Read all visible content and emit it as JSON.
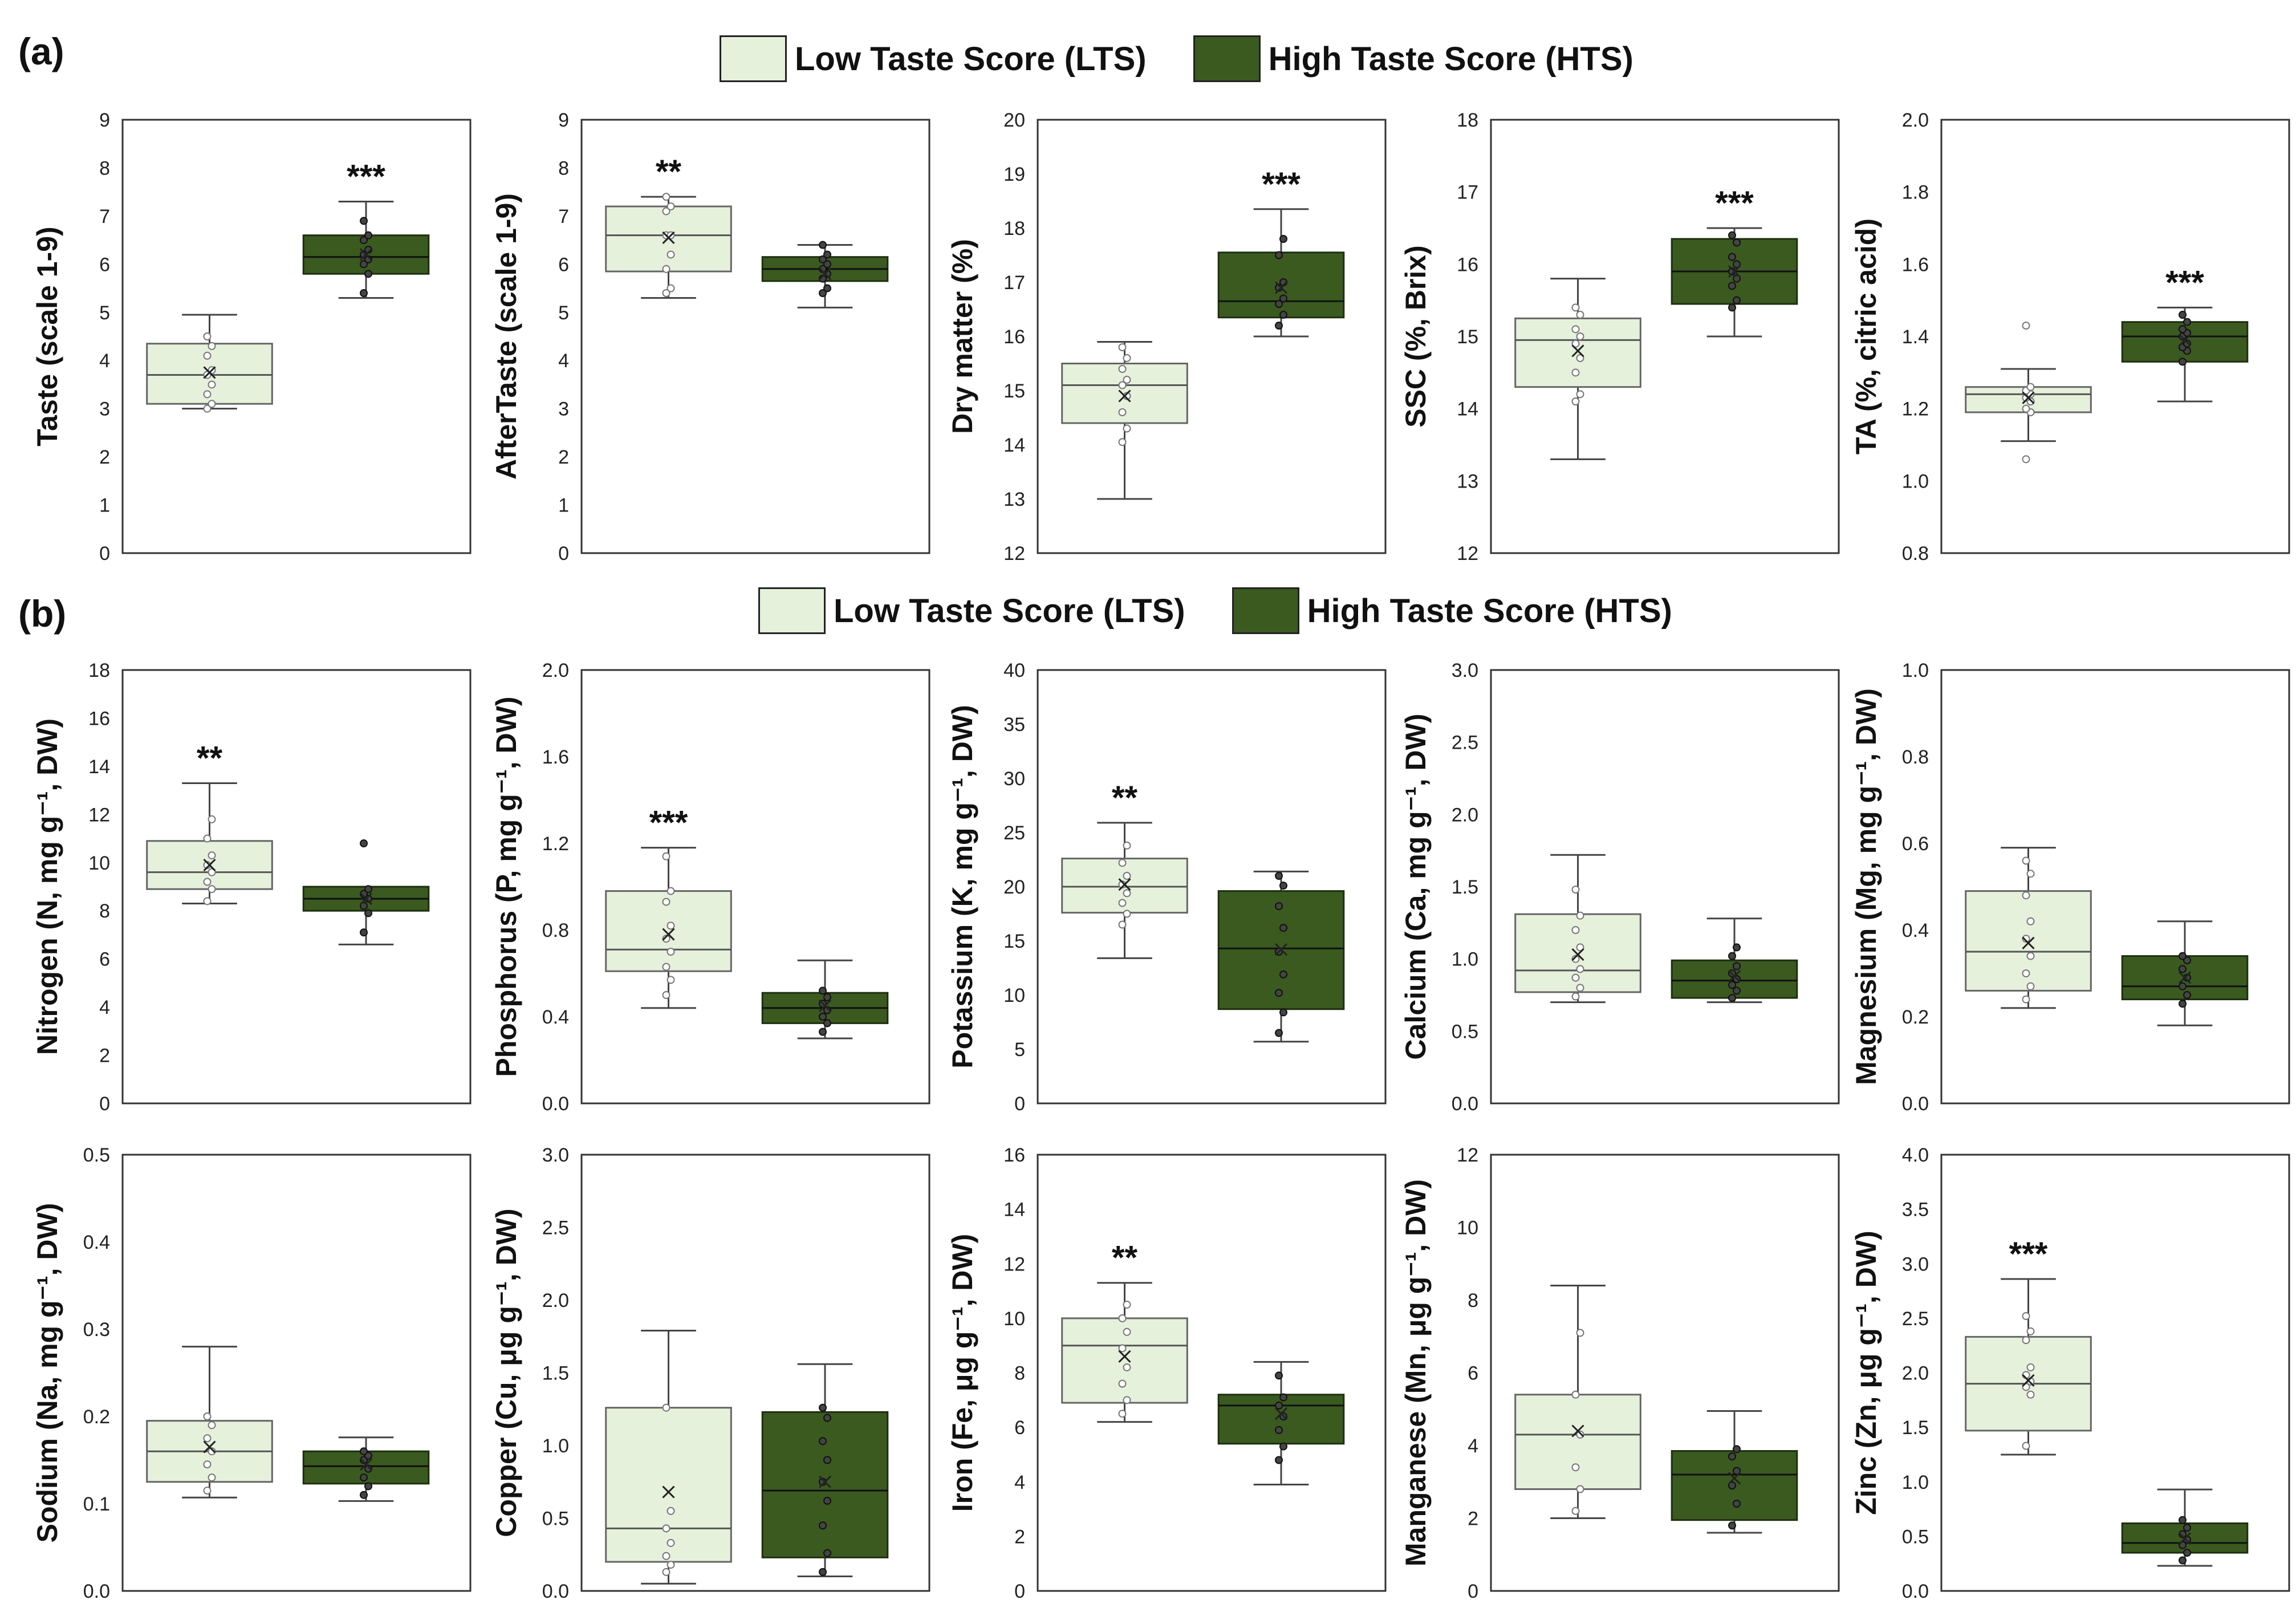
{
  "panels": {
    "a": "(a)",
    "b": "(b)"
  },
  "legend": {
    "lts_label": "Low Taste Score (LTS)",
    "hts_label": "High Taste Score (HTS)",
    "lts_color": "#e6f1dc",
    "hts_color": "#3a5a20"
  },
  "chart_data": [
    {
      "type": "box",
      "ylabel": "Taste (scale 1-9)",
      "ylim": [
        0,
        9
      ],
      "yticks": [
        "0",
        "1",
        "2",
        "3",
        "4",
        "5",
        "6",
        "7",
        "8",
        "9"
      ],
      "significance": "***",
      "sig_over": "HTS",
      "series": [
        {
          "name": "LTS",
          "min": 3.0,
          "q1": 3.1,
          "median": 3.7,
          "q3": 4.35,
          "max": 4.95,
          "mean": 3.75,
          "points": [
            3.0,
            3.1,
            3.3,
            3.5,
            3.7,
            3.8,
            4.1,
            4.3,
            4.5
          ]
        },
        {
          "name": "HTS",
          "min": 5.3,
          "q1": 5.8,
          "median": 6.15,
          "q3": 6.6,
          "max": 7.3,
          "mean": 6.2,
          "points": [
            5.4,
            5.8,
            6.0,
            6.1,
            6.2,
            6.3,
            6.5,
            6.6,
            6.9
          ]
        }
      ]
    },
    {
      "type": "box",
      "ylabel": "AfterTaste (scale 1-9)",
      "ylim": [
        0,
        9
      ],
      "yticks": [
        "0",
        "1",
        "2",
        "3",
        "4",
        "5",
        "6",
        "7",
        "8",
        "9"
      ],
      "significance": "**",
      "sig_over": "LTS",
      "series": [
        {
          "name": "LTS",
          "min": 5.3,
          "q1": 5.85,
          "median": 6.6,
          "q3": 7.2,
          "max": 7.4,
          "mean": 6.55,
          "points": [
            5.4,
            5.5,
            5.9,
            6.2,
            6.6,
            6.6,
            7.1,
            7.2,
            7.4
          ]
        },
        {
          "name": "HTS",
          "min": 5.1,
          "q1": 5.65,
          "median": 5.9,
          "q3": 6.15,
          "max": 6.4,
          "mean": 5.8,
          "points": [
            5.4,
            5.5,
            5.7,
            5.8,
            5.9,
            6.0,
            6.1,
            6.2,
            6.4
          ]
        }
      ]
    },
    {
      "type": "box",
      "ylabel": "Dry matter (%)",
      "ylim": [
        12,
        20
      ],
      "yticks": [
        "12",
        "13",
        "14",
        "15",
        "16",
        "17",
        "18",
        "19",
        "20"
      ],
      "significance": "***",
      "sig_over": "HTS",
      "series": [
        {
          "name": "LTS",
          "min": 13.0,
          "q1": 14.4,
          "median": 15.1,
          "q3": 15.5,
          "max": 15.9,
          "mean": 14.9,
          "points": [
            14.05,
            14.3,
            14.6,
            14.9,
            15.1,
            15.2,
            15.4,
            15.6,
            15.8
          ]
        },
        {
          "name": "HTS",
          "min": 16.0,
          "q1": 16.35,
          "median": 16.65,
          "q3": 17.55,
          "max": 18.35,
          "mean": 16.9,
          "points": [
            16.2,
            16.4,
            16.6,
            16.7,
            16.9,
            17.0,
            17.5,
            17.8
          ]
        }
      ]
    },
    {
      "type": "box",
      "ylabel": "SSC (%, Brix)",
      "ylim": [
        12,
        18
      ],
      "yticks": [
        "12",
        "13",
        "14",
        "15",
        "16",
        "17",
        "18"
      ],
      "significance": "***",
      "sig_over": "HTS",
      "series": [
        {
          "name": "LTS",
          "min": 13.3,
          "q1": 14.3,
          "median": 14.95,
          "q3": 15.25,
          "max": 15.8,
          "mean": 14.8,
          "points": [
            14.1,
            14.2,
            14.5,
            14.7,
            14.9,
            15.0,
            15.1,
            15.3,
            15.4
          ]
        },
        {
          "name": "HTS",
          "min": 15.0,
          "q1": 15.45,
          "median": 15.9,
          "q3": 16.35,
          "max": 16.5,
          "mean": 15.9,
          "points": [
            15.4,
            15.5,
            15.7,
            15.8,
            15.9,
            16.0,
            16.1,
            16.3,
            16.4
          ]
        }
      ]
    },
    {
      "type": "box",
      "ylabel": "TA (%, citric acid)",
      "ylim": [
        0.8,
        2.0
      ],
      "yticks": [
        "0.8",
        "1.0",
        "1.2",
        "1.4",
        "1.6",
        "1.8",
        "2.0"
      ],
      "significance": "***",
      "sig_over": "HTS",
      "series": [
        {
          "name": "LTS",
          "min": 1.11,
          "q1": 1.19,
          "median": 1.24,
          "q3": 1.26,
          "max": 1.31,
          "mean": 1.23,
          "points": [
            1.06,
            1.19,
            1.2,
            1.22,
            1.23,
            1.24,
            1.25,
            1.26,
            1.43
          ]
        },
        {
          "name": "HTS",
          "min": 1.22,
          "q1": 1.33,
          "median": 1.4,
          "q3": 1.44,
          "max": 1.48,
          "mean": 1.39,
          "points": [
            1.33,
            1.36,
            1.37,
            1.38,
            1.4,
            1.41,
            1.42,
            1.44,
            1.46
          ]
        }
      ]
    },
    {
      "type": "box",
      "ylabel": "Nitrogen (N, mg g⁻¹, DW)",
      "ylim": [
        0,
        18
      ],
      "yticks": [
        "0",
        "2",
        "4",
        "6",
        "8",
        "10",
        "12",
        "14",
        "16",
        "18"
      ],
      "significance": "**",
      "sig_over": "LTS",
      "series": [
        {
          "name": "LTS",
          "min": 8.3,
          "q1": 8.9,
          "median": 9.6,
          "q3": 10.9,
          "max": 13.3,
          "mean": 9.9,
          "points": [
            8.4,
            8.9,
            9.2,
            9.6,
            9.9,
            10.3,
            11.0,
            11.8
          ]
        },
        {
          "name": "HTS",
          "min": 6.6,
          "q1": 8.0,
          "median": 8.5,
          "q3": 9.0,
          "max": 9.0,
          "mean": 8.5,
          "points": [
            7.1,
            7.9,
            8.2,
            8.5,
            8.7,
            8.9,
            10.8
          ]
        }
      ]
    },
    {
      "type": "box",
      "ylabel": "Phosphorus (P, mg g⁻¹, DW)",
      "ylim": [
        0,
        2.0
      ],
      "yticks": [
        "0.0",
        "0.4",
        "0.8",
        "1.2",
        "1.6",
        "2.0"
      ],
      "significance": "***",
      "sig_over": "LTS",
      "series": [
        {
          "name": "LTS",
          "min": 0.44,
          "q1": 0.61,
          "median": 0.71,
          "q3": 0.98,
          "max": 1.18,
          "mean": 0.78,
          "points": [
            0.5,
            0.57,
            0.63,
            0.7,
            0.76,
            0.82,
            0.93,
            0.98,
            1.14
          ]
        },
        {
          "name": "HTS",
          "min": 0.3,
          "q1": 0.37,
          "median": 0.44,
          "q3": 0.51,
          "max": 0.66,
          "mean": 0.45,
          "points": [
            0.33,
            0.37,
            0.4,
            0.43,
            0.46,
            0.49,
            0.52
          ]
        }
      ]
    },
    {
      "type": "box",
      "ylabel": "Potassium (K, mg g⁻¹, DW)",
      "ylim": [
        0,
        40
      ],
      "yticks": [
        "0",
        "5",
        "10",
        "15",
        "20",
        "25",
        "30",
        "35",
        "40"
      ],
      "significance": "**",
      "sig_over": "LTS",
      "series": [
        {
          "name": "LTS",
          "min": 13.4,
          "q1": 17.6,
          "median": 20.0,
          "q3": 22.6,
          "max": 25.9,
          "mean": 20.2,
          "points": [
            16.5,
            17.5,
            18.5,
            19.4,
            20.2,
            21.0,
            22.2,
            23.8
          ]
        },
        {
          "name": "HTS",
          "min": 5.7,
          "q1": 8.7,
          "median": 14.3,
          "q3": 19.6,
          "max": 21.4,
          "mean": 14.2,
          "points": [
            6.5,
            8.4,
            10.2,
            11.9,
            14.0,
            16.2,
            18.2,
            20.1,
            21.0
          ]
        }
      ]
    },
    {
      "type": "box",
      "ylabel": "Calcium (Ca, mg g⁻¹, DW)",
      "ylim": [
        0,
        3.0
      ],
      "yticks": [
        "0.0",
        "0.5",
        "1.0",
        "1.5",
        "2.0",
        "2.5",
        "3.0"
      ],
      "significance": "",
      "sig_over": "",
      "series": [
        {
          "name": "LTS",
          "min": 0.7,
          "q1": 0.77,
          "median": 0.92,
          "q3": 1.31,
          "max": 1.72,
          "mean": 1.03,
          "points": [
            0.74,
            0.8,
            0.87,
            0.93,
            1.0,
            1.08,
            1.2,
            1.3,
            1.48
          ]
        },
        {
          "name": "HTS",
          "min": 0.7,
          "q1": 0.73,
          "median": 0.85,
          "q3": 0.99,
          "max": 1.28,
          "mean": 0.88,
          "points": [
            0.73,
            0.78,
            0.82,
            0.86,
            0.9,
            0.95,
            1.02,
            1.08
          ]
        }
      ]
    },
    {
      "type": "box",
      "ylabel": "Magnesium (Mg, mg g⁻¹, DW)",
      "ylim": [
        0,
        1.0
      ],
      "yticks": [
        "0.0",
        "0.2",
        "0.4",
        "0.6",
        "0.8",
        "1.0"
      ],
      "significance": "",
      "sig_over": "",
      "series": [
        {
          "name": "LTS",
          "min": 0.22,
          "q1": 0.26,
          "median": 0.35,
          "q3": 0.49,
          "max": 0.59,
          "mean": 0.37,
          "points": [
            0.24,
            0.27,
            0.3,
            0.34,
            0.38,
            0.42,
            0.48,
            0.53,
            0.56
          ]
        },
        {
          "name": "HTS",
          "min": 0.18,
          "q1": 0.24,
          "median": 0.27,
          "q3": 0.34,
          "max": 0.42,
          "mean": 0.29,
          "points": [
            0.23,
            0.25,
            0.27,
            0.29,
            0.31,
            0.33,
            0.34
          ]
        }
      ]
    },
    {
      "type": "box",
      "ylabel": "Sodium (Na, mg g⁻¹, DW)",
      "ylim": [
        0,
        0.5
      ],
      "yticks": [
        "0.0",
        "0.1",
        "0.2",
        "0.3",
        "0.4",
        "0.5"
      ],
      "significance": "",
      "sig_over": "",
      "series": [
        {
          "name": "LTS",
          "min": 0.107,
          "q1": 0.125,
          "median": 0.16,
          "q3": 0.195,
          "max": 0.28,
          "mean": 0.165,
          "points": [
            0.115,
            0.13,
            0.145,
            0.16,
            0.175,
            0.19,
            0.2
          ]
        },
        {
          "name": "HTS",
          "min": 0.103,
          "q1": 0.123,
          "median": 0.143,
          "q3": 0.16,
          "max": 0.176,
          "mean": 0.145,
          "points": [
            0.11,
            0.12,
            0.13,
            0.14,
            0.15,
            0.155,
            0.16
          ]
        }
      ]
    },
    {
      "type": "box",
      "ylabel": "Copper (Cu, μg g⁻¹, DW)",
      "ylim": [
        0,
        3.0
      ],
      "yticks": [
        "0.0",
        "0.5",
        "1.0",
        "1.5",
        "2.0",
        "2.5",
        "3.0"
      ],
      "significance": "",
      "sig_over": "",
      "series": [
        {
          "name": "LTS",
          "min": 0.05,
          "q1": 0.2,
          "median": 0.43,
          "q3": 1.26,
          "max": 1.79,
          "mean": 0.68,
          "points": [
            0.13,
            0.18,
            0.24,
            0.33,
            0.43,
            0.55,
            1.26
          ]
        },
        {
          "name": "HTS",
          "min": 0.1,
          "q1": 0.23,
          "median": 0.69,
          "q3": 1.23,
          "max": 1.56,
          "mean": 0.75,
          "points": [
            0.13,
            0.26,
            0.45,
            0.62,
            0.75,
            0.9,
            1.03,
            1.19,
            1.26
          ]
        }
      ]
    },
    {
      "type": "box",
      "ylabel": "Iron (Fe, μg g⁻¹, DW)",
      "ylim": [
        0,
        16
      ],
      "yticks": [
        "0",
        "2",
        "4",
        "6",
        "8",
        "10",
        "12",
        "14",
        "16"
      ],
      "significance": "**",
      "sig_over": "LTS",
      "series": [
        {
          "name": "LTS",
          "min": 6.2,
          "q1": 6.9,
          "median": 9.0,
          "q3": 10.0,
          "max": 11.3,
          "mean": 8.6,
          "points": [
            6.5,
            7.0,
            7.6,
            8.2,
            8.9,
            9.5,
            10.0,
            10.5
          ]
        },
        {
          "name": "HTS",
          "min": 3.9,
          "q1": 5.4,
          "median": 6.8,
          "q3": 7.2,
          "max": 8.4,
          "mean": 6.5,
          "points": [
            4.8,
            5.3,
            5.9,
            6.4,
            6.8,
            7.1,
            7.9
          ]
        }
      ]
    },
    {
      "type": "box",
      "ylabel": "Manganese (Mn, μg g⁻¹, DW)",
      "ylim": [
        0,
        12
      ],
      "yticks": [
        "0",
        "2",
        "4",
        "6",
        "8",
        "10",
        "12"
      ],
      "significance": "",
      "sig_over": "",
      "series": [
        {
          "name": "LTS",
          "min": 2.0,
          "q1": 2.8,
          "median": 4.3,
          "q3": 5.4,
          "max": 8.4,
          "mean": 4.4,
          "points": [
            2.2,
            2.8,
            3.4,
            4.3,
            5.4,
            7.1
          ]
        },
        {
          "name": "HTS",
          "min": 1.6,
          "q1": 1.95,
          "median": 3.2,
          "q3": 3.85,
          "max": 4.95,
          "mean": 3.1,
          "points": [
            1.8,
            2.4,
            2.9,
            3.3,
            3.7,
            3.9
          ]
        }
      ]
    },
    {
      "type": "box",
      "ylabel": "Zinc (Zn, μg g⁻¹, DW)",
      "ylim": [
        0,
        4.0
      ],
      "yticks": [
        "0.0",
        "0.5",
        "1.0",
        "1.5",
        "2.0",
        "2.5",
        "3.0",
        "3.5",
        "4.0"
      ],
      "significance": "***",
      "sig_over": "LTS",
      "series": [
        {
          "name": "LTS",
          "min": 1.25,
          "q1": 1.47,
          "median": 1.9,
          "q3": 2.33,
          "max": 2.86,
          "mean": 1.93,
          "points": [
            1.33,
            1.8,
            1.87,
            1.92,
            1.98,
            2.05,
            2.3,
            2.38,
            2.52
          ]
        },
        {
          "name": "HTS",
          "min": 0.23,
          "q1": 0.35,
          "median": 0.44,
          "q3": 0.62,
          "max": 0.93,
          "mean": 0.48,
          "points": [
            0.28,
            0.35,
            0.42,
            0.47,
            0.52,
            0.58,
            0.65
          ]
        }
      ]
    }
  ]
}
